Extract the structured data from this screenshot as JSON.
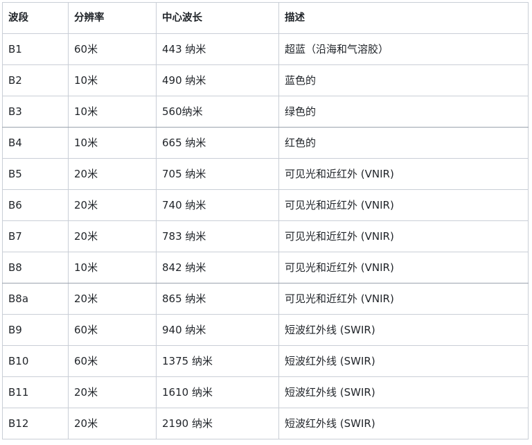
{
  "table": {
    "headers": [
      "波段",
      "分辨率",
      "中心波长",
      "描述"
    ],
    "rows": [
      {
        "band": "B1",
        "resolution": "60米",
        "wavelength": "443 纳米",
        "description": "超蓝（沿海和气溶胶）"
      },
      {
        "band": "B2",
        "resolution": "10米",
        "wavelength": "490 纳米",
        "description": "蓝色的"
      },
      {
        "band": "B3",
        "resolution": "10米",
        "wavelength": "560纳米",
        "description": "绿色的"
      },
      {
        "band": "B4",
        "resolution": "10米",
        "wavelength": "665 纳米",
        "description": "红色的"
      },
      {
        "band": "B5",
        "resolution": "20米",
        "wavelength": "705 纳米",
        "description": "可见光和近红外 (VNIR)"
      },
      {
        "band": "B6",
        "resolution": "20米",
        "wavelength": "740 纳米",
        "description": "可见光和近红外 (VNIR)"
      },
      {
        "band": "B7",
        "resolution": "20米",
        "wavelength": "783 纳米",
        "description": "可见光和近红外 (VNIR)"
      },
      {
        "band": "B8",
        "resolution": "10米",
        "wavelength": "842 纳米",
        "description": "可见光和近红外 (VNIR)"
      },
      {
        "band": "B8a",
        "resolution": "20米",
        "wavelength": "865 纳米",
        "description": "可见光和近红外 (VNIR)"
      },
      {
        "band": "B9",
        "resolution": "60米",
        "wavelength": "940 纳米",
        "description": "短波红外线 (SWIR)"
      },
      {
        "band": "B10",
        "resolution": "60米",
        "wavelength": "1375 纳米",
        "description": "短波红外线 (SWIR)"
      },
      {
        "band": "B11",
        "resolution": "20米",
        "wavelength": "1610 纳米",
        "description": "短波红外线 (SWIR)"
      },
      {
        "band": "B12",
        "resolution": "20米",
        "wavelength": "2190 纳米",
        "description": "短波红外线 (SWIR)"
      }
    ]
  }
}
